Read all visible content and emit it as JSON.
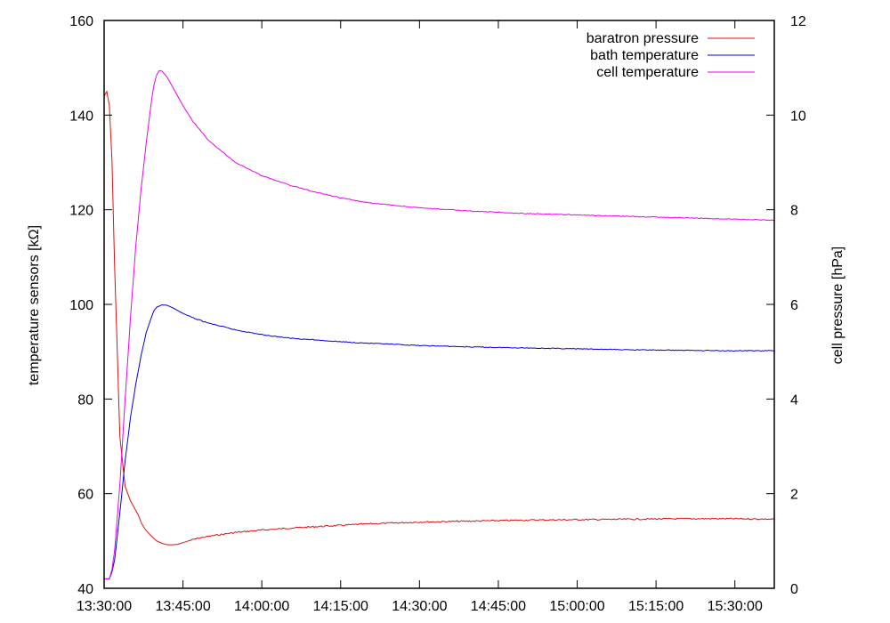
{
  "chart_data": {
    "type": "line",
    "title": "",
    "xlabel": "",
    "ylabel_left": "temperature sensors [kΩ]",
    "ylabel_right": "cell pressure [hPa]",
    "x_ticks": [
      "13:30:00",
      "13:45:00",
      "14:00:00",
      "14:15:00",
      "14:30:00",
      "14:45:00",
      "15:00:00",
      "15:15:00",
      "15:30:00"
    ],
    "x_tick_minutes": [
      0,
      15,
      30,
      45,
      60,
      75,
      90,
      105,
      120
    ],
    "xlim_minutes": [
      0,
      127.5
    ],
    "y_left_ticks": [
      "40",
      "60",
      "80",
      "100",
      "120",
      "140",
      "160"
    ],
    "y_left_tick_values": [
      40,
      60,
      80,
      100,
      120,
      140,
      160
    ],
    "ylim_left": [
      40,
      160
    ],
    "y_right_ticks": [
      "0",
      "2",
      "4",
      "6",
      "8",
      "10",
      "12"
    ],
    "y_right_tick_values": [
      0,
      2,
      4,
      6,
      8,
      10,
      12
    ],
    "ylim_right": [
      0,
      12
    ],
    "grid": false,
    "legend_position": "top-right",
    "series": [
      {
        "name": "baratron pressure",
        "axis": "right",
        "color": "#e01010",
        "x": [
          0,
          0.5,
          1,
          1.5,
          2,
          3,
          4,
          5,
          6,
          6.5,
          7,
          7.5,
          8,
          9,
          10,
          11,
          12,
          13,
          14,
          16,
          18,
          20,
          25,
          30,
          35,
          40,
          45,
          50,
          55,
          60,
          70,
          80,
          90,
          100,
          110,
          120,
          127.5
        ],
        "y": [
          10.4,
          10.5,
          10.2,
          9.0,
          6.8,
          3.2,
          2.15,
          1.85,
          1.65,
          1.55,
          1.4,
          1.3,
          1.22,
          1.1,
          1.0,
          0.95,
          0.92,
          0.92,
          0.93,
          1.0,
          1.06,
          1.1,
          1.18,
          1.23,
          1.27,
          1.3,
          1.33,
          1.36,
          1.38,
          1.4,
          1.42,
          1.44,
          1.45,
          1.46,
          1.47,
          1.47,
          1.46
        ]
      },
      {
        "name": "bath temperature",
        "axis": "left",
        "color": "#0000e0",
        "x": [
          0,
          0.5,
          1,
          1.5,
          2,
          3,
          4,
          5,
          6,
          7,
          8,
          9,
          9.5,
          10,
          11,
          12,
          13,
          14,
          15,
          17,
          20,
          25,
          30,
          35,
          40,
          45,
          50,
          60,
          70,
          80,
          90,
          100,
          110,
          120,
          127.5
        ],
        "y": [
          42,
          42,
          42,
          43.5,
          46,
          56,
          67,
          76,
          83,
          89,
          94,
          97.3,
          98.7,
          99.4,
          99.9,
          99.8,
          99.3,
          98.7,
          98.1,
          97.1,
          96,
          94.6,
          93.6,
          92.9,
          92.5,
          92.1,
          91.8,
          91.3,
          91.0,
          90.8,
          90.6,
          90.4,
          90.3,
          90.2,
          90.2
        ]
      },
      {
        "name": "cell temperature",
        "axis": "left",
        "color": "#ee00ee",
        "x": [
          0,
          0.5,
          1,
          1.5,
          2,
          3,
          4,
          5,
          6,
          7,
          8,
          9,
          9.5,
          10,
          10.5,
          11,
          12,
          13,
          14,
          15,
          17,
          20,
          25,
          30,
          35,
          40,
          45,
          50,
          60,
          70,
          80,
          90,
          100,
          110,
          120,
          127.5
        ],
        "y": [
          42,
          42,
          42,
          44,
          48,
          62,
          80,
          97,
          112,
          124,
          134,
          143,
          146.5,
          148.5,
          149.4,
          149.3,
          148,
          146,
          144,
          142,
          138.5,
          134.5,
          130,
          127.2,
          125.3,
          123.8,
          122.5,
          121.5,
          120.4,
          119.7,
          119.2,
          118.9,
          118.6,
          118.3,
          118.0,
          117.8
        ]
      }
    ]
  }
}
